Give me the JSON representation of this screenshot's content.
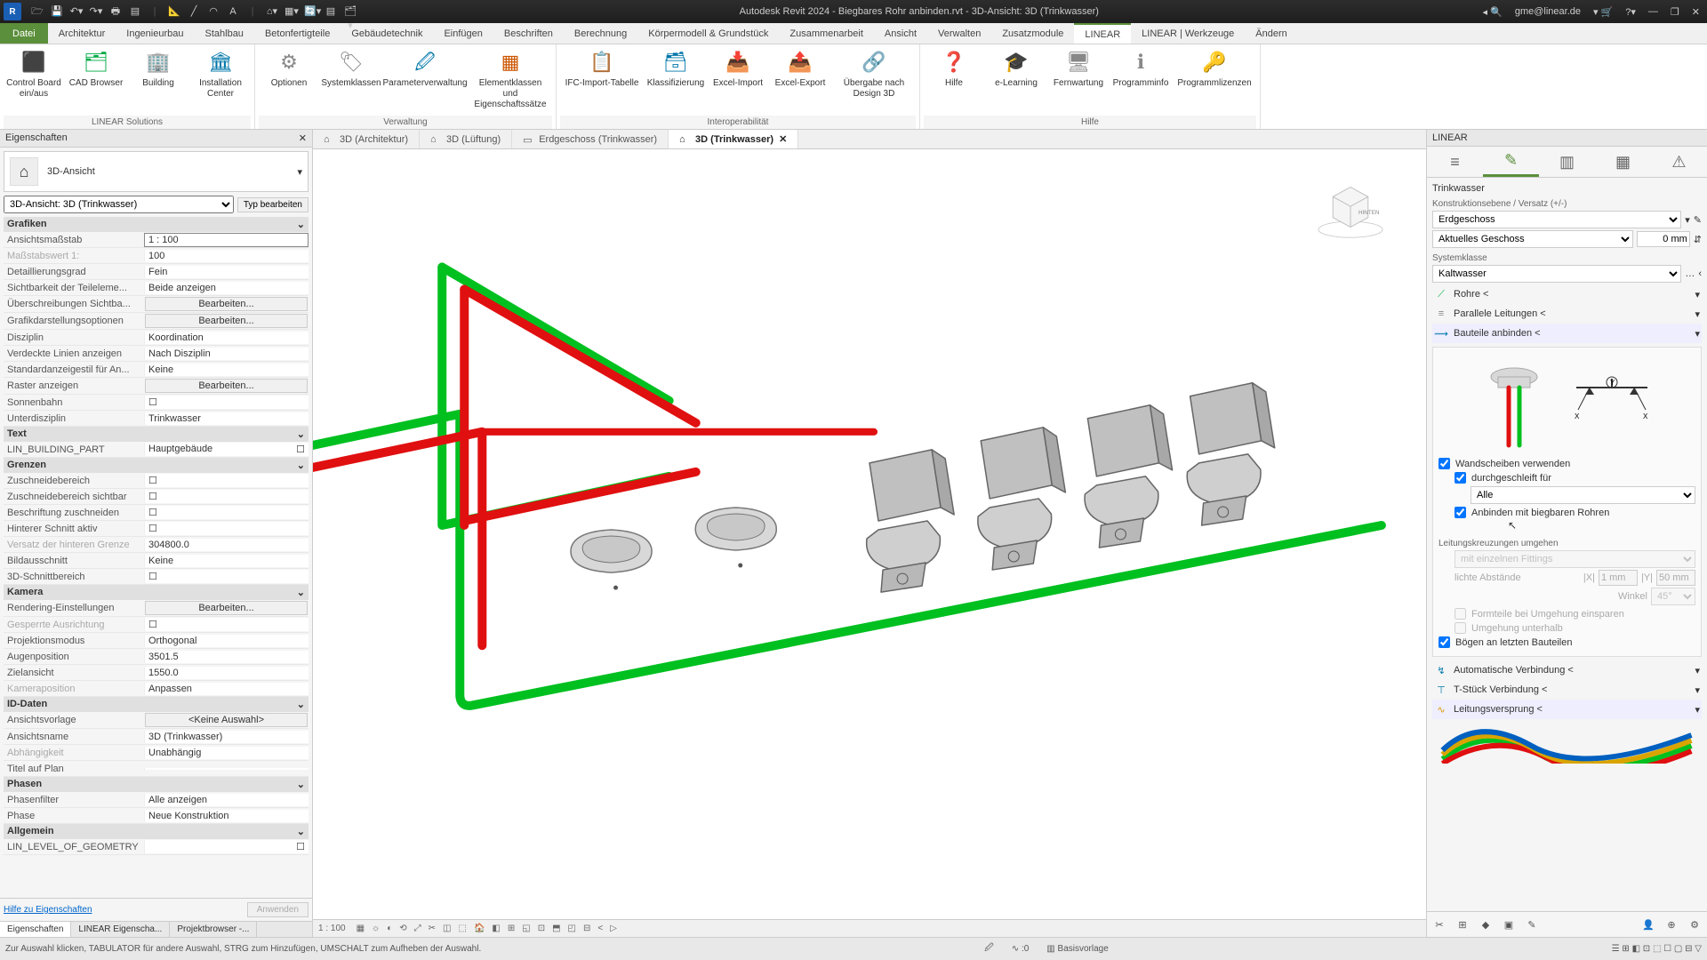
{
  "titlebar": {
    "app_title": "Autodesk Revit 2024 - Biegbares Rohr anbinden.rvt - 3D-Ansicht: 3D (Trinkwasser)",
    "user": "gme@linear.de",
    "qat_icons": [
      "folder",
      "save",
      "undo-dd",
      "redo-dd",
      "print",
      "sheet",
      "sep",
      "measure",
      "line",
      "arc",
      "text",
      "sep",
      "home-dd",
      "views-dd",
      "sync-dd",
      "filter",
      "sep",
      "browser-dd"
    ]
  },
  "ribbon_tabs": {
    "file": "Datei",
    "tabs": [
      "Architektur",
      "Ingenieurbau",
      "Stahlbau",
      "Betonfertigteile",
      "Gebäudetechnik",
      "Einfügen",
      "Beschriften",
      "Berechnung",
      "Körpermodell & Grundstück",
      "Zusammenarbeit",
      "Ansicht",
      "Verwalten",
      "Zusatzmodule",
      "LINEAR",
      "LINEAR | Werkzeuge",
      "Ändern"
    ],
    "active": "LINEAR"
  },
  "ribbon_groups": [
    {
      "label": "LINEAR Solutions",
      "items": [
        {
          "name": "Control Board ein/aus",
          "icon": "⬛",
          "color": "#0a4"
        },
        {
          "name": "CAD Browser",
          "icon": "🗂",
          "color": "#0a4"
        },
        {
          "name": "Building",
          "icon": "🏢",
          "color": "#0a4"
        },
        {
          "name": "Installation Center",
          "icon": "🏛",
          "color": "#07a"
        }
      ]
    },
    {
      "label": "Verwaltung",
      "items": [
        {
          "name": "Optionen",
          "icon": "⚙",
          "color": "#888"
        },
        {
          "name": "Systemklassen",
          "icon": "🏷",
          "color": "#888"
        },
        {
          "name": "Parameterverwaltung",
          "icon": "🖉",
          "color": "#07a",
          "wide": true
        },
        {
          "name": "Elementklassen und Eigenschaftssätze",
          "icon": "▦",
          "color": "#c50",
          "wide": true
        }
      ]
    },
    {
      "label": "Interoperabilität",
      "items": [
        {
          "name": "IFC-Import-Tabelle",
          "icon": "📋",
          "color": "#888",
          "wide": true
        },
        {
          "name": "Klassifizierung",
          "icon": "🗃",
          "color": "#07a"
        },
        {
          "name": "Excel-Import",
          "icon": "📥",
          "color": "#0a4"
        },
        {
          "name": "Excel-Export",
          "icon": "📤",
          "color": "#0a4"
        },
        {
          "name": "Übergabe nach Design 3D",
          "icon": "🔗",
          "color": "#c50",
          "wide": true
        }
      ]
    },
    {
      "label": "Hilfe",
      "items": [
        {
          "name": "Hilfe",
          "icon": "❓",
          "color": "#07a"
        },
        {
          "name": "e-Learning",
          "icon": "🎓",
          "color": "#333"
        },
        {
          "name": "Fernwartung",
          "icon": "🖥",
          "color": "#888"
        },
        {
          "name": "Programminfo",
          "icon": "ℹ",
          "color": "#888"
        },
        {
          "name": "Programmlizenzen",
          "icon": "🔑",
          "color": "#d90",
          "wide": true
        }
      ]
    }
  ],
  "properties": {
    "title": "Eigenschaften",
    "type_label": "3D-Ansicht",
    "filter_value": "3D-Ansicht: 3D (Trinkwasser)",
    "edit_type": "Typ bearbeiten",
    "sections": [
      {
        "cat": "Grafiken",
        "rows": [
          {
            "k": "Ansichtsmaßstab",
            "v": "1 : 100",
            "boxed": true
          },
          {
            "k": "Maßstabswert 1:",
            "v": "100",
            "dim": true
          },
          {
            "k": "Detaillierungsgrad",
            "v": "Fein"
          },
          {
            "k": "Sichtbarkeit der Teileleme...",
            "v": "Beide anzeigen"
          },
          {
            "k": "Überschreibungen Sichtba...",
            "v": "Bearbeiten...",
            "btn": true
          },
          {
            "k": "Grafikdarstellungsoptionen",
            "v": "Bearbeiten...",
            "btn": true
          },
          {
            "k": "Disziplin",
            "v": "Koordination"
          },
          {
            "k": "Verdeckte Linien anzeigen",
            "v": "Nach Disziplin"
          },
          {
            "k": "Standardanzeigestil für An...",
            "v": "Keine"
          },
          {
            "k": "Raster anzeigen",
            "v": "Bearbeiten...",
            "btn": true
          },
          {
            "k": "Sonnenbahn",
            "v": "",
            "chk": true
          },
          {
            "k": "Unterdisziplin",
            "v": "Trinkwasser"
          }
        ]
      },
      {
        "cat": "Text",
        "rows": [
          {
            "k": "LIN_BUILDING_PART",
            "v": "Hauptgebäude",
            "chkright": true
          }
        ]
      },
      {
        "cat": "Grenzen",
        "rows": [
          {
            "k": "Zuschneidebereich",
            "v": "",
            "chk": true
          },
          {
            "k": "Zuschneidebereich sichtbar",
            "v": "",
            "chk": true
          },
          {
            "k": "Beschriftung zuschneiden",
            "v": "",
            "chk": true
          },
          {
            "k": "Hinterer Schnitt aktiv",
            "v": "",
            "chk": true
          },
          {
            "k": "Versatz der hinteren Grenze",
            "v": "304800.0",
            "dim": true
          },
          {
            "k": "Bildausschnitt",
            "v": "Keine"
          },
          {
            "k": "3D-Schnittbereich",
            "v": "",
            "chk": true
          }
        ]
      },
      {
        "cat": "Kamera",
        "rows": [
          {
            "k": "Rendering-Einstellungen",
            "v": "Bearbeiten...",
            "btn": true
          },
          {
            "k": "Gesperrte Ausrichtung",
            "v": "",
            "chk": true,
            "dim": true
          },
          {
            "k": "Projektionsmodus",
            "v": "Orthogonal"
          },
          {
            "k": "Augenposition",
            "v": "3501.5"
          },
          {
            "k": "Zielansicht",
            "v": "1550.0"
          },
          {
            "k": "Kameraposition",
            "v": "Anpassen",
            "dim": true
          }
        ]
      },
      {
        "cat": "ID-Daten",
        "rows": [
          {
            "k": "Ansichtsvorlage",
            "v": "<Keine Auswahl>",
            "btn": true
          },
          {
            "k": "Ansichtsname",
            "v": "3D (Trinkwasser)"
          },
          {
            "k": "Abhängigkeit",
            "v": "Unabhängig",
            "dim": true
          },
          {
            "k": "Titel auf Plan",
            "v": ""
          }
        ]
      },
      {
        "cat": "Phasen",
        "rows": [
          {
            "k": "Phasenfilter",
            "v": "Alle anzeigen"
          },
          {
            "k": "Phase",
            "v": "Neue Konstruktion"
          }
        ]
      },
      {
        "cat": "Allgemein",
        "rows": [
          {
            "k": "LIN_LEVEL_OF_GEOMETRY",
            "v": "",
            "chkright": true
          }
        ]
      }
    ],
    "help_link": "Hilfe zu Eigenschaften",
    "apply": "Anwenden",
    "bottom_tabs": [
      "Eigenschaften",
      "LINEAR Eigenscha...",
      "Projektbrowser -..."
    ],
    "bottom_active": 0
  },
  "viewtabs": [
    {
      "label": "3D (Architektur)",
      "active": false,
      "icon": "home"
    },
    {
      "label": "3D (Lüftung)",
      "active": false,
      "icon": "home"
    },
    {
      "label": "Erdgeschoss (Trinkwasser)",
      "active": false,
      "icon": "plan"
    },
    {
      "label": "3D (Trinkwasser)",
      "active": true,
      "icon": "home",
      "close": true
    }
  ],
  "viewcube_face": "HINTEN",
  "viewbar": {
    "scale": "1 : 100",
    "icons": [
      "▦",
      "☼",
      "◐",
      "⟲",
      "⤢",
      "✂",
      "◫",
      "⬚",
      "🏠",
      "◧",
      "⊞",
      "◱",
      "⊡",
      "⬒",
      "◰",
      "⊟",
      "<",
      "▷"
    ]
  },
  "rpanel": {
    "title": "LINEAR",
    "discipline": "Trinkwasser",
    "sect1": "Konstruktionsebene / Versatz (+/-)",
    "level": "Erdgeschoss",
    "ref": "Aktuelles Geschoss",
    "offset": "0 mm",
    "sect2": "Systemklasse",
    "sysclass": "Kaltwasser",
    "rows": [
      {
        "label": "Rohre <",
        "icon": "⟋",
        "c": "#0a4"
      },
      {
        "label": "Parallele Leitungen <",
        "icon": "≡",
        "c": "#888"
      },
      {
        "label": "Bauteile anbinden <",
        "icon": "⟿",
        "c": "#07a",
        "open": true
      }
    ],
    "opts": {
      "wand": "Wandscheiben verwenden",
      "wand_chk": true,
      "durch": "durchgeschleift für",
      "durch_chk": true,
      "durch_sel": "Alle",
      "bieg": "Anbinden mit biegbaren Rohren",
      "bieg_chk": true,
      "kreuz": "Leitungskreuzungen umgehen",
      "kreuz_sel": "mit einzelnen Fittings",
      "licht": "lichte Abstände",
      "lx": "1 mm",
      "ly": "50 mm",
      "winkel": "Winkel",
      "winkel_v": "45°",
      "form": "Formteile bei Umgehung einsparen",
      "umg": "Umgehung unterhalb",
      "bogen": "Bögen an letzten Bauteilen",
      "bogen_chk": true
    },
    "rows2": [
      {
        "label": "Automatische Verbindung <",
        "icon": "↯",
        "c": "#07a"
      },
      {
        "label": "T-Stück Verbindung <",
        "icon": "⊤",
        "c": "#07a"
      },
      {
        "label": "Leitungsversprung <",
        "icon": "∿",
        "c": "#d90",
        "open": true
      }
    ]
  },
  "statusbar": {
    "hint": "Zur Auswahl klicken, TABULATOR für andere Auswahl, STRG zum Hinzufügen, UMSCHALT zum Aufheben der Auswahl.",
    "basis": "Basisvorlage"
  },
  "colors": {
    "green": "#00c020",
    "red": "#e01010",
    "grey": "#9a9a9a",
    "floor": "#cfcfcf"
  }
}
